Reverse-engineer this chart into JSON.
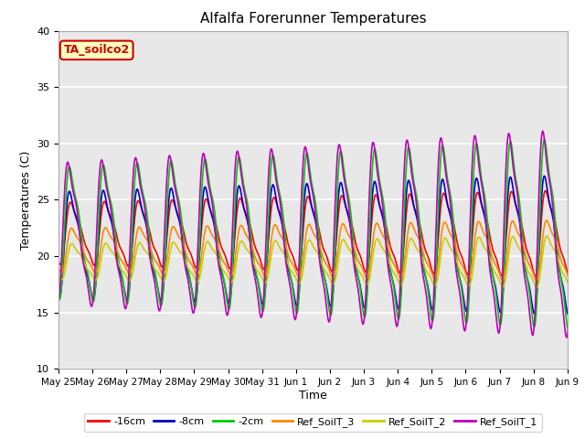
{
  "title": "Alfalfa Forerunner Temperatures",
  "ylabel": "Temperatures (C)",
  "xlabel": "Time",
  "annotation": "TA_soilco2",
  "ylim": [
    10,
    40
  ],
  "yticks": [
    10,
    15,
    20,
    25,
    30,
    35,
    40
  ],
  "n_days": 16,
  "ppd": 48,
  "series": {
    "-16cm": {
      "color": "#FF0000",
      "lw": 1.2
    },
    "-8cm": {
      "color": "#0000CC",
      "lw": 1.2
    },
    "-2cm": {
      "color": "#00CC00",
      "lw": 1.2
    },
    "Ref_SoilT_3": {
      "color": "#FF8800",
      "lw": 1.2
    },
    "Ref_SoilT_2": {
      "color": "#CCCC00",
      "lw": 1.2
    },
    "Ref_SoilT_1": {
      "color": "#BB00BB",
      "lw": 1.2
    }
  },
  "xtick_labels": [
    "May 25",
    "May 26",
    "May 27",
    "May 28",
    "May 29",
    "May 30",
    "May 31",
    "Jun 1",
    "Jun 2",
    "Jun 3",
    "Jun 4",
    "Jun 5",
    "Jun 6",
    "Jun 7",
    "Jun 8",
    "Jun 9"
  ],
  "bg_color": "#E8E8E8",
  "fig_color": "#FFFFFF",
  "grid_color": "#FFFFFF"
}
